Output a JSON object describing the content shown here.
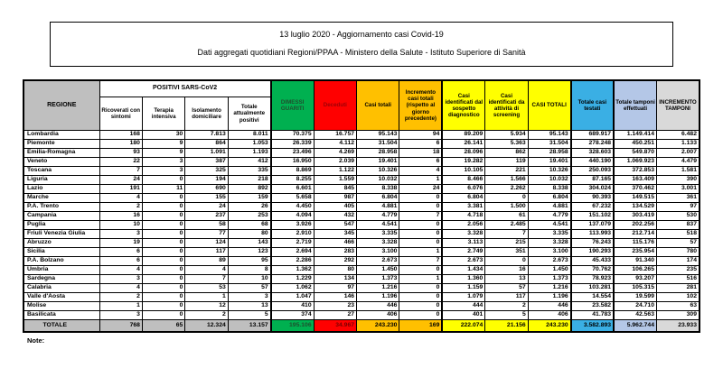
{
  "title_box": {
    "line1": "13 luglio 2020 - Aggiornamento casi Covid-19",
    "line2": "Dati aggregati quotidiani Regioni/PPAA - Ministero della Salute - Istituto Superiore di Sanità"
  },
  "colors": {
    "gray": "#BFBFBF",
    "lightgray": "#D9D9D9",
    "green": "#00B050",
    "red": "#FF0000",
    "orange": "#FFC000",
    "yellow": "#FFFF00",
    "blue": "#3AAFE4",
    "lightblue": "#B4C7E7"
  },
  "table": {
    "region_header": "REGIONE",
    "group_header": "POSITIVI SARS-CoV2",
    "columns": [
      {
        "key": "ricoverati",
        "label": "Ricoverati con sintomi"
      },
      {
        "key": "terapia",
        "label": "Terapia intensiva"
      },
      {
        "key": "isolamento",
        "label": "Isolamento domiciliare"
      },
      {
        "key": "positivi",
        "label": "Totale attualmente positivi"
      },
      {
        "key": "dimessi",
        "label": "DIMESSI GUARITI"
      },
      {
        "key": "deceduti",
        "label": "Deceduti"
      },
      {
        "key": "casitotali",
        "label": "Casi totali"
      },
      {
        "key": "incremento",
        "label": "Incremento casi totali (rispetto al giorno precedente)"
      },
      {
        "key": "sospetto",
        "label": "Casi identificati dal sospetto diagnostico"
      },
      {
        "key": "screening",
        "label": "Casi identificati da attività di screening"
      },
      {
        "key": "casitotali2",
        "label": "CASI TOTALI"
      },
      {
        "key": "testati",
        "label": "Totale casi testati"
      },
      {
        "key": "tamponi",
        "label": "Totale tamponi effettuati"
      },
      {
        "key": "incrtamponi",
        "label": "INCREMENTO TAMPONI"
      }
    ],
    "rows": [
      {
        "name": "Lombardia",
        "values": [
          "168",
          "30",
          "7.813",
          "8.011",
          "70.375",
          "16.757",
          "95.143",
          "94",
          "89.209",
          "5.934",
          "95.143",
          "689.917",
          "1.149.414",
          "6.482"
        ]
      },
      {
        "name": "Piemonte",
        "values": [
          "180",
          "9",
          "864",
          "1.053",
          "26.339",
          "4.112",
          "31.504",
          "6",
          "26.141",
          "5.363",
          "31.504",
          "278.248",
          "450.251",
          "1.133"
        ]
      },
      {
        "name": "Emilia-Romagna",
        "values": [
          "93",
          "9",
          "1.091",
          "1.193",
          "23.496",
          "4.269",
          "28.958",
          "18",
          "28.096",
          "862",
          "28.958",
          "328.603",
          "549.870",
          "2.007"
        ]
      },
      {
        "name": "Veneto",
        "values": [
          "22",
          "3",
          "387",
          "412",
          "16.950",
          "2.039",
          "19.401",
          "6",
          "19.282",
          "119",
          "19.401",
          "440.190",
          "1.069.923",
          "4.479"
        ]
      },
      {
        "name": "Toscana",
        "values": [
          "7",
          "3",
          "325",
          "335",
          "8.869",
          "1.122",
          "10.326",
          "4",
          "10.105",
          "221",
          "10.326",
          "250.093",
          "372.853",
          "1.581"
        ]
      },
      {
        "name": "Liguria",
        "values": [
          "24",
          "0",
          "194",
          "218",
          "8.255",
          "1.559",
          "10.032",
          "1",
          "8.466",
          "1.566",
          "10.032",
          "87.165",
          "163.409",
          "390"
        ]
      },
      {
        "name": "Lazio",
        "values": [
          "191",
          "11",
          "690",
          "892",
          "6.601",
          "845",
          "8.338",
          "24",
          "6.076",
          "2.262",
          "8.338",
          "304.024",
          "370.462",
          "3.001"
        ]
      },
      {
        "name": "Marche",
        "values": [
          "4",
          "0",
          "155",
          "159",
          "5.658",
          "987",
          "6.804",
          "0",
          "6.804",
          "0",
          "6.804",
          "90.393",
          "149.515",
          "361"
        ]
      },
      {
        "name": "P.A. Trento",
        "values": [
          "2",
          "0",
          "24",
          "26",
          "4.450",
          "405",
          "4.881",
          "0",
          "3.381",
          "1.500",
          "4.881",
          "67.232",
          "134.529",
          "97"
        ]
      },
      {
        "name": "Campania",
        "values": [
          "16",
          "0",
          "237",
          "253",
          "4.094",
          "432",
          "4.779",
          "7",
          "4.718",
          "61",
          "4.779",
          "151.102",
          "303.419",
          "530"
        ]
      },
      {
        "name": "Puglia",
        "values": [
          "10",
          "0",
          "58",
          "68",
          "3.926",
          "547",
          "4.541",
          "0",
          "2.056",
          "2.485",
          "4.541",
          "137.079",
          "202.256",
          "837"
        ]
      },
      {
        "name": "Friuli Venezia Giulia",
        "values": [
          "3",
          "0",
          "77",
          "80",
          "2.910",
          "345",
          "3.335",
          "0",
          "3.328",
          "7",
          "3.335",
          "113.993",
          "212.714",
          "518"
        ]
      },
      {
        "name": "Abruzzo",
        "values": [
          "19",
          "0",
          "124",
          "143",
          "2.719",
          "466",
          "3.328",
          "0",
          "3.113",
          "215",
          "3.328",
          "76.243",
          "115.176",
          "57"
        ]
      },
      {
        "name": "Sicilia",
        "values": [
          "6",
          "0",
          "117",
          "123",
          "2.694",
          "283",
          "3.100",
          "1",
          "2.749",
          "351",
          "3.100",
          "190.293",
          "235.954",
          "780"
        ]
      },
      {
        "name": "P.A. Bolzano",
        "values": [
          "6",
          "0",
          "89",
          "95",
          "2.286",
          "292",
          "2.673",
          "7",
          "2.673",
          "0",
          "2.673",
          "45.433",
          "91.340",
          "174"
        ]
      },
      {
        "name": "Umbria",
        "values": [
          "4",
          "0",
          "4",
          "8",
          "1.362",
          "80",
          "1.450",
          "0",
          "1.434",
          "16",
          "1.450",
          "70.762",
          "106.265",
          "235"
        ]
      },
      {
        "name": "Sardegna",
        "values": [
          "3",
          "0",
          "7",
          "10",
          "1.229",
          "134",
          "1.373",
          "1",
          "1.360",
          "13",
          "1.373",
          "78.923",
          "93.207",
          "516"
        ]
      },
      {
        "name": "Calabria",
        "values": [
          "4",
          "0",
          "53",
          "57",
          "1.062",
          "97",
          "1.216",
          "0",
          "1.159",
          "57",
          "1.216",
          "103.281",
          "105.315",
          "281"
        ]
      },
      {
        "name": "Valle d'Aosta",
        "values": [
          "2",
          "0",
          "1",
          "3",
          "1.047",
          "146",
          "1.196",
          "0",
          "1.079",
          "117",
          "1.196",
          "14.554",
          "19.599",
          "102"
        ]
      },
      {
        "name": "Molise",
        "values": [
          "1",
          "0",
          "12",
          "13",
          "410",
          "23",
          "446",
          "0",
          "444",
          "2",
          "446",
          "23.582",
          "24.710",
          "63"
        ]
      },
      {
        "name": "Basilicata",
        "values": [
          "3",
          "0",
          "2",
          "5",
          "374",
          "27",
          "406",
          "0",
          "401",
          "5",
          "406",
          "41.783",
          "42.563",
          "309"
        ]
      }
    ],
    "total": {
      "name": "TOTALE",
      "values": [
        "768",
        "65",
        "12.324",
        "13.157",
        "195.106",
        "34.967",
        "243.230",
        "169",
        "222.074",
        "21.156",
        "243.230",
        "3.582.893",
        "5.962.744",
        "23.933"
      ]
    }
  },
  "footer_note": "Note:"
}
